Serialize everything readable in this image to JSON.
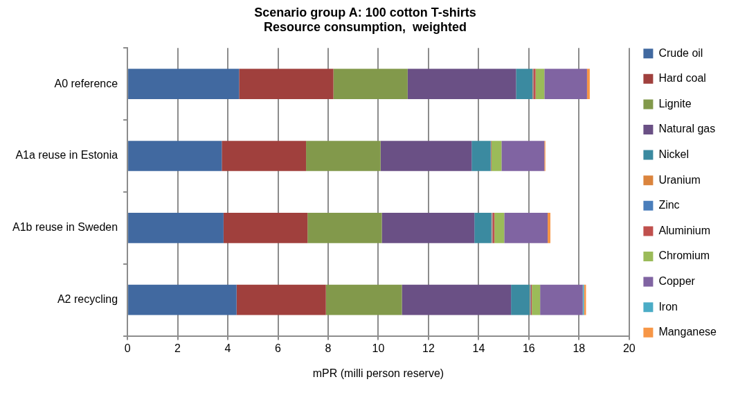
{
  "chart_data": {
    "type": "bar",
    "orientation": "horizontal",
    "stacked": true,
    "title": [
      "Scenario group A: 100 cotton T-shirts",
      "Resource consumption,  weighted"
    ],
    "xlabel": "mPR (milli person reserve)",
    "categories": [
      "A0 reference",
      "A1a reuse in Estonia",
      "A1b reuse in Sweden",
      "A2 recycling"
    ],
    "series": [
      {
        "name": "Crude oil",
        "color": "#4169a0",
        "values": [
          4.45,
          3.76,
          3.83,
          4.35
        ]
      },
      {
        "name": "Hard coal",
        "color": "#a0403d",
        "values": [
          3.76,
          3.36,
          3.35,
          3.56
        ]
      },
      {
        "name": "Lignite",
        "color": "#82994b",
        "values": [
          2.96,
          2.97,
          2.96,
          3.03
        ]
      },
      {
        "name": "Natural gas",
        "color": "#6a5085",
        "values": [
          4.32,
          3.63,
          3.69,
          4.35
        ]
      },
      {
        "name": "Nickel",
        "color": "#3b8aa0",
        "values": [
          0.66,
          0.76,
          0.68,
          0.75
        ]
      },
      {
        "name": "Uranium",
        "color": "#db843d",
        "values": [
          0.02,
          null,
          0.02,
          0.02
        ]
      },
      {
        "name": "Zinc",
        "color": "#4a7ebb",
        "values": [
          0.01,
          0.01,
          0.02,
          0.02
        ]
      },
      {
        "name": "Aluminium",
        "color": "#c0504d",
        "values": [
          0.09,
          0.02,
          0.08,
          0.04
        ]
      },
      {
        "name": "Chromium",
        "color": "#9bbb59",
        "values": [
          0.35,
          0.4,
          0.39,
          0.33
        ]
      },
      {
        "name": "Copper",
        "color": "#8064a2",
        "values": [
          1.7,
          1.71,
          1.73,
          1.7
        ]
      },
      {
        "name": "Iron",
        "color": "#4bacc6",
        "values": [
          null,
          null,
          null,
          0.05
        ]
      },
      {
        "name": "Manganese",
        "color": "#f79646",
        "values": [
          0.11,
          0.04,
          0.11,
          0.08
        ]
      }
    ],
    "xlim": [
      0,
      20
    ],
    "xticks": [
      0,
      2,
      4,
      6,
      8,
      10,
      12,
      14,
      16,
      18,
      20
    ],
    "grid": "x",
    "legend": "right"
  }
}
